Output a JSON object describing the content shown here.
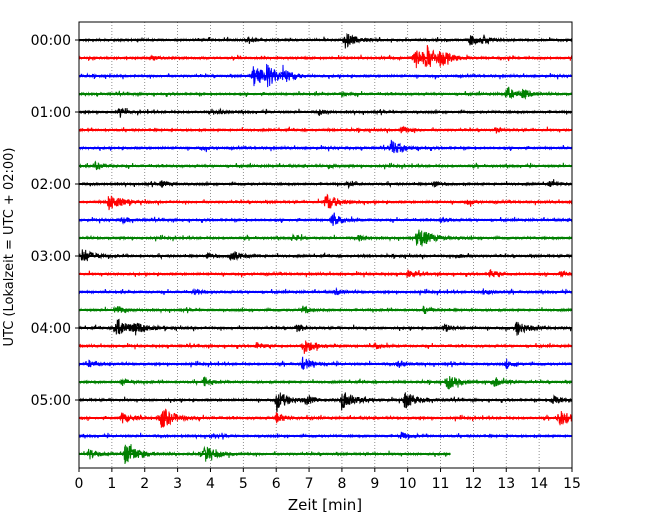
{
  "chart_data": {
    "type": "line",
    "xlabel": "Zeit  [min]",
    "ylabel": "UTC (Lokalzeit = UTC + 02:00)",
    "xlim": [
      0,
      15
    ],
    "x_ticks": [
      0,
      1,
      2,
      3,
      4,
      5,
      6,
      7,
      8,
      9,
      10,
      11,
      12,
      13,
      14,
      15
    ],
    "y_ticks": [
      {
        "label": "00:00",
        "row": 0
      },
      {
        "label": "01:00",
        "row": 4
      },
      {
        "label": "02:00",
        "row": 8
      },
      {
        "label": "03:00",
        "row": 12
      },
      {
        "label": "04:00",
        "row": 16
      },
      {
        "label": "05:00",
        "row": 20
      }
    ],
    "grid": {
      "x": true,
      "style": "dotted"
    },
    "row_minutes": 15,
    "row_colors": [
      "#000000",
      "#ff0000",
      "#0000ff",
      "#008000"
    ],
    "series": [
      {
        "row": 0,
        "start": 0,
        "end": 15,
        "bursts": [
          {
            "t": 8.1,
            "a": 0.7
          },
          {
            "t": 5.1,
            "a": 0.3
          },
          {
            "t": 11.9,
            "a": 0.5
          },
          {
            "t": 12.3,
            "a": 0.35
          }
        ]
      },
      {
        "row": 1,
        "start": 0,
        "end": 15,
        "bursts": [
          {
            "t": 10.2,
            "a": 1.0
          },
          {
            "t": 10.6,
            "a": 0.8
          },
          {
            "t": 11.0,
            "a": 0.5
          },
          {
            "t": 2.2,
            "a": 0.2
          }
        ]
      },
      {
        "row": 2,
        "start": 0,
        "end": 15,
        "bursts": [
          {
            "t": 5.3,
            "a": 1.0
          },
          {
            "t": 5.7,
            "a": 0.8
          },
          {
            "t": 6.2,
            "a": 0.5
          }
        ]
      },
      {
        "row": 3,
        "start": 0,
        "end": 15,
        "bursts": [
          {
            "t": 13.0,
            "a": 0.6
          },
          {
            "t": 13.5,
            "a": 0.4
          },
          {
            "t": 8.0,
            "a": 0.2
          }
        ]
      },
      {
        "row": 4,
        "start": 0,
        "end": 15,
        "bursts": [
          {
            "t": 1.2,
            "a": 0.3
          },
          {
            "t": 4.2,
            "a": 0.25
          },
          {
            "t": 7.3,
            "a": 0.25
          }
        ]
      },
      {
        "row": 5,
        "start": 0,
        "end": 15,
        "bursts": [
          {
            "t": 9.8,
            "a": 0.35
          },
          {
            "t": 12.7,
            "a": 0.25
          }
        ]
      },
      {
        "row": 6,
        "start": 0,
        "end": 15,
        "bursts": [
          {
            "t": 9.5,
            "a": 0.7
          },
          {
            "t": 3.7,
            "a": 0.2
          }
        ]
      },
      {
        "row": 7,
        "start": 0,
        "end": 15,
        "bursts": [
          {
            "t": 0.5,
            "a": 0.35
          },
          {
            "t": 7.6,
            "a": 0.2
          }
        ]
      },
      {
        "row": 8,
        "start": 0,
        "end": 15,
        "bursts": [
          {
            "t": 2.5,
            "a": 0.3
          },
          {
            "t": 8.2,
            "a": 0.25
          },
          {
            "t": 10.8,
            "a": 0.3
          },
          {
            "t": 14.3,
            "a": 0.3
          }
        ]
      },
      {
        "row": 9,
        "start": 0,
        "end": 15,
        "bursts": [
          {
            "t": 0.9,
            "a": 0.8
          },
          {
            "t": 7.5,
            "a": 0.8
          },
          {
            "t": 11.8,
            "a": 0.25
          }
        ]
      },
      {
        "row": 10,
        "start": 0,
        "end": 15,
        "bursts": [
          {
            "t": 7.7,
            "a": 0.6
          },
          {
            "t": 1.3,
            "a": 0.3
          },
          {
            "t": 11.0,
            "a": 0.2
          }
        ]
      },
      {
        "row": 11,
        "start": 0,
        "end": 15,
        "bursts": [
          {
            "t": 10.3,
            "a": 1.0
          },
          {
            "t": 6.5,
            "a": 0.3
          },
          {
            "t": 8.5,
            "a": 0.3
          }
        ]
      },
      {
        "row": 12,
        "start": 0,
        "end": 15,
        "bursts": [
          {
            "t": 0.1,
            "a": 0.7
          },
          {
            "t": 4.6,
            "a": 0.6
          },
          {
            "t": 3.9,
            "a": 0.3
          },
          {
            "t": 11.5,
            "a": 0.25
          }
        ]
      },
      {
        "row": 13,
        "start": 0,
        "end": 15,
        "bursts": [
          {
            "t": 10.0,
            "a": 0.35
          },
          {
            "t": 12.5,
            "a": 0.4
          },
          {
            "t": 14.6,
            "a": 0.3
          }
        ]
      },
      {
        "row": 14,
        "start": 0,
        "end": 15,
        "bursts": [
          {
            "t": 3.5,
            "a": 0.25
          },
          {
            "t": 7.8,
            "a": 0.3
          },
          {
            "t": 12.3,
            "a": 0.3
          }
        ]
      },
      {
        "row": 15,
        "start": 0,
        "end": 15,
        "bursts": [
          {
            "t": 1.1,
            "a": 0.45
          },
          {
            "t": 6.8,
            "a": 0.35
          },
          {
            "t": 10.5,
            "a": 0.3
          }
        ]
      },
      {
        "row": 16,
        "start": 0,
        "end": 15,
        "bursts": [
          {
            "t": 1.1,
            "a": 1.0
          },
          {
            "t": 1.7,
            "a": 0.5
          },
          {
            "t": 13.3,
            "a": 0.7
          },
          {
            "t": 6.6,
            "a": 0.35
          },
          {
            "t": 11.1,
            "a": 0.4
          }
        ]
      },
      {
        "row": 17,
        "start": 0,
        "end": 15,
        "bursts": [
          {
            "t": 6.8,
            "a": 0.8
          },
          {
            "t": 5.4,
            "a": 0.35
          },
          {
            "t": 9.0,
            "a": 0.3
          }
        ]
      },
      {
        "row": 18,
        "start": 0,
        "end": 15,
        "bursts": [
          {
            "t": 6.8,
            "a": 0.6
          },
          {
            "t": 0.3,
            "a": 0.3
          },
          {
            "t": 9.7,
            "a": 0.35
          },
          {
            "t": 13.0,
            "a": 0.35
          }
        ]
      },
      {
        "row": 19,
        "start": 0,
        "end": 15,
        "bursts": [
          {
            "t": 11.2,
            "a": 0.7
          },
          {
            "t": 12.6,
            "a": 0.6
          },
          {
            "t": 3.8,
            "a": 0.45
          },
          {
            "t": 1.3,
            "a": 0.35
          }
        ]
      },
      {
        "row": 20,
        "start": 0,
        "end": 15,
        "bursts": [
          {
            "t": 6.0,
            "a": 0.9
          },
          {
            "t": 8.0,
            "a": 0.9
          },
          {
            "t": 9.9,
            "a": 0.8
          },
          {
            "t": 14.4,
            "a": 0.5
          },
          {
            "t": 6.9,
            "a": 0.4
          }
        ]
      },
      {
        "row": 21,
        "start": 0,
        "end": 15,
        "bursts": [
          {
            "t": 2.5,
            "a": 1.0
          },
          {
            "t": 14.6,
            "a": 0.8
          },
          {
            "t": 1.3,
            "a": 0.5
          },
          {
            "t": 6.0,
            "a": 0.5
          }
        ]
      },
      {
        "row": 22,
        "start": 0,
        "end": 15,
        "bursts": [
          {
            "t": 9.8,
            "a": 0.35
          },
          {
            "t": 4.0,
            "a": 0.25
          }
        ]
      },
      {
        "row": 23,
        "start": 0,
        "end": 11.3,
        "bursts": [
          {
            "t": 1.4,
            "a": 1.0
          },
          {
            "t": 3.8,
            "a": 0.8
          },
          {
            "t": 0.3,
            "a": 0.5
          }
        ]
      }
    ]
  }
}
